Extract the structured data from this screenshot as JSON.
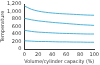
{
  "chart_data": {
    "type": "line",
    "y_label": "Temperature",
    "x_label": "Volume/cylinder capacity (%)",
    "x": [
      0,
      10,
      20,
      30,
      40,
      50,
      60,
      70,
      80,
      90,
      100
    ],
    "series": [
      {
        "color": "#4fb3d9",
        "values": [
          1150,
          1060,
          1010,
          980,
          960,
          945,
          935,
          925,
          915,
          905,
          900
        ]
      },
      {
        "color": "#4fb3d9",
        "values": [
          820,
          780,
          750,
          730,
          710,
          695,
          680,
          665,
          650,
          640,
          630
        ]
      },
      {
        "color": "#4fb3d9",
        "values": [
          500,
          470,
          450,
          440,
          430,
          420,
          415,
          410,
          405,
          400,
          400
        ]
      },
      {
        "color": "#4fb3d9",
        "values": [
          220,
          210,
          200,
          200,
          195,
          190,
          190,
          185,
          185,
          180,
          180
        ]
      }
    ],
    "xlim": [
      0,
      100
    ],
    "xticks": [
      0,
      20,
      40,
      60,
      80,
      100
    ],
    "ylim": [
      0,
      1200
    ],
    "yticks": [
      0,
      200,
      400,
      600,
      800,
      1000,
      1200
    ],
    "grid": false
  }
}
